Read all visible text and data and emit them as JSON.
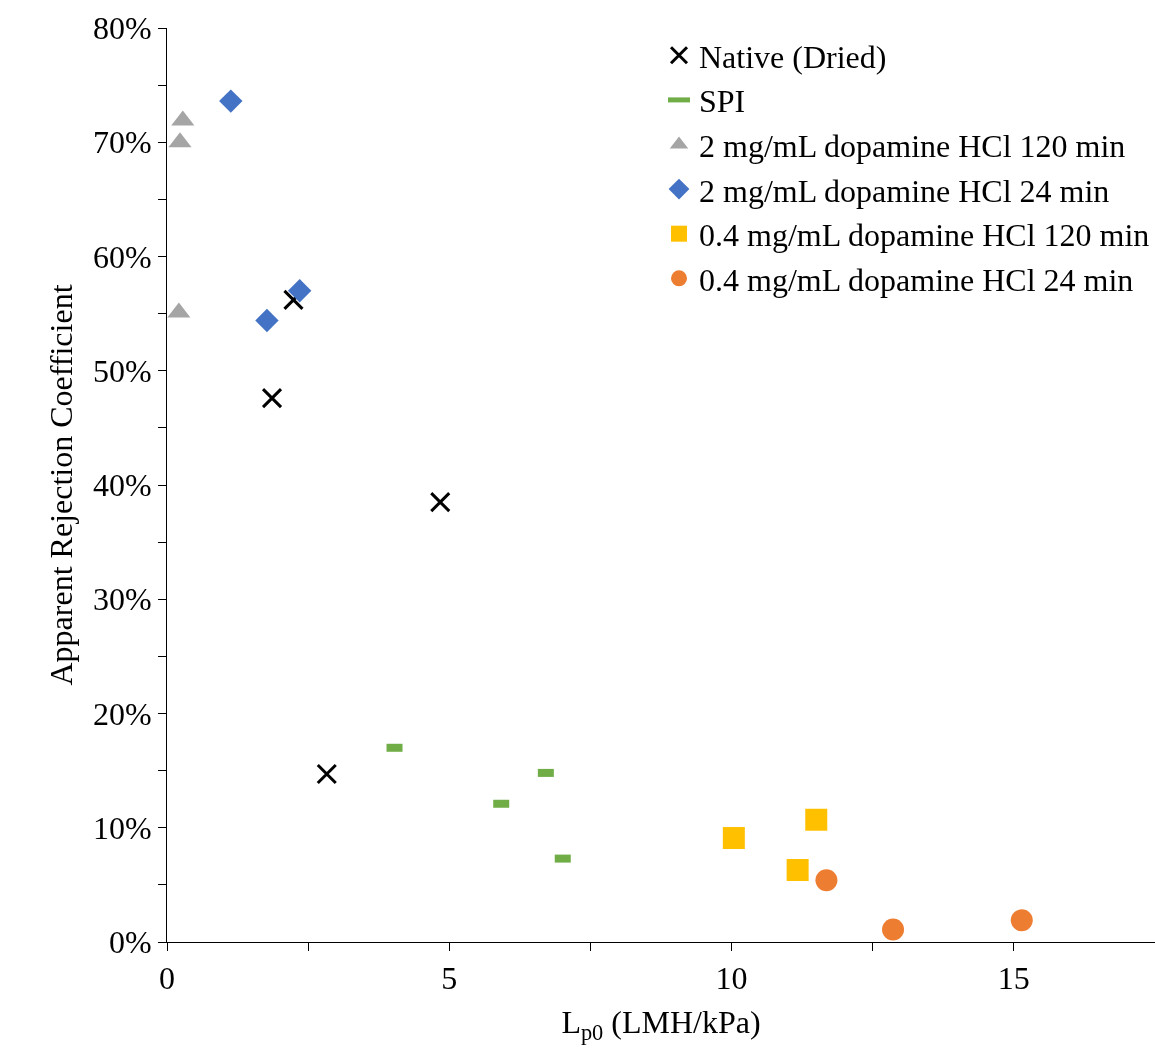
{
  "chart_data": {
    "type": "scatter",
    "xlabel": "L$_{p0}$ (LMH/kPa)",
    "ylabel": "Apparent Rejection Coefficient",
    "xlim": [
      0,
      17.5
    ],
    "xticks": [
      0,
      {
        "value": 2.5,
        "label": null
      },
      5,
      {
        "value": 7.5,
        "label": null
      },
      10,
      {
        "value": 12.5,
        "label": null
      },
      15
    ],
    "ylim": [
      0,
      0.8
    ],
    "yticks": [
      {
        "value": 0,
        "label": "0%"
      },
      {
        "value": 0.05,
        "label": null
      },
      {
        "value": 0.1,
        "label": "10%"
      },
      {
        "value": 0.15,
        "label": null
      },
      {
        "value": 0.2,
        "label": "20%"
      },
      {
        "value": 0.25,
        "label": null
      },
      {
        "value": 0.3,
        "label": "30%"
      },
      {
        "value": 0.35,
        "label": null
      },
      {
        "value": 0.4,
        "label": "40%"
      },
      {
        "value": 0.45,
        "label": null
      },
      {
        "value": 0.5,
        "label": "50%"
      },
      {
        "value": 0.55,
        "label": null
      },
      {
        "value": 0.6,
        "label": "60%"
      },
      {
        "value": 0.65,
        "label": null
      },
      {
        "value": 0.7,
        "label": "70%"
      },
      {
        "value": 0.75,
        "label": null
      },
      {
        "value": 0.8,
        "label": "80%"
      }
    ],
    "grid": false,
    "legend": "top right",
    "series": [
      {
        "name": "Native (Dried)",
        "color": "#000000",
        "marker": "cross",
        "x": [
          2.24,
          1.86,
          4.84,
          2.83
        ],
        "values": [
          0.562,
          0.476,
          0.385,
          0.147
        ]
      },
      {
        "name": "SPI",
        "color": "#70ad47",
        "x": [
          4.03,
          5.92,
          6.71,
          7.01
        ],
        "values": [
          0.17,
          0.121,
          0.148,
          0.073
        ]
      },
      {
        "name": "2 mg/mL dopamine HCl 120 min",
        "color": "#a5a5a5",
        "marker": "triangle",
        "x": [
          0.28,
          0.23,
          0.21
        ],
        "values": [
          0.719,
          0.7,
          0.551
        ]
      },
      {
        "name": "2 mg/mL dopamine HCl 24 min",
        "color": "#4472c4",
        "marker": "diamond",
        "x": [
          1.13,
          1.77,
          2.35
        ],
        "values": [
          0.736,
          0.544,
          0.57
        ]
      },
      {
        "name": "0.4 mg/mL dopamine HCl 120 min",
        "color": "#ffc000",
        "marker": "square",
        "x": [
          10.04,
          11.5,
          11.17
        ],
        "values": [
          0.091,
          0.107,
          0.063
        ]
      },
      {
        "name": "0.4 mg/mL dopamine HCl 24 min",
        "color": "#ed7d31",
        "marker": "circle",
        "x": [
          11.68,
          12.86,
          15.14
        ],
        "values": [
          0.054,
          0.011,
          0.019
        ]
      }
    ]
  }
}
